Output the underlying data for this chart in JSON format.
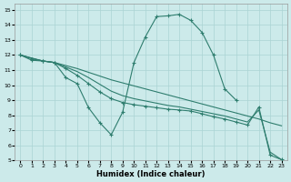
{
  "xlabel": "Humidex (Indice chaleur)",
  "background_color": "#cceaea",
  "grid_color": "#aad4d4",
  "line_color": "#2e7d6e",
  "xlim": [
    -0.5,
    23.5
  ],
  "ylim": [
    5,
    15.4
  ],
  "x_ticks": [
    0,
    1,
    2,
    3,
    4,
    5,
    6,
    7,
    8,
    9,
    10,
    11,
    12,
    13,
    14,
    15,
    16,
    17,
    18,
    19,
    20,
    21,
    22,
    23
  ],
  "y_ticks": [
    5,
    6,
    7,
    8,
    9,
    10,
    11,
    12,
    13,
    14,
    15
  ],
  "s1_x": [
    0,
    1,
    2,
    3,
    4,
    5,
    6,
    7,
    8,
    9,
    10,
    11,
    12,
    13,
    14,
    15,
    16,
    17,
    18,
    19
  ],
  "s1_y": [
    12.0,
    11.65,
    11.6,
    11.5,
    10.5,
    10.1,
    8.5,
    7.5,
    6.7,
    8.2,
    11.5,
    13.2,
    14.55,
    14.6,
    14.7,
    14.3,
    13.5,
    12.0,
    9.75,
    9.0
  ],
  "s2_x": [
    0,
    1,
    2,
    3,
    4,
    5,
    6,
    7,
    8,
    9,
    10,
    11,
    12,
    13,
    14,
    15,
    16,
    17,
    18,
    19,
    20,
    21,
    22,
    23
  ],
  "s2_y": [
    12.0,
    11.78,
    11.6,
    11.5,
    11.3,
    11.1,
    10.85,
    10.6,
    10.35,
    10.15,
    9.95,
    9.75,
    9.55,
    9.35,
    9.15,
    8.95,
    8.75,
    8.55,
    8.35,
    8.15,
    7.95,
    7.75,
    7.5,
    7.3
  ],
  "s3_x": [
    0,
    1,
    2,
    3,
    4,
    5,
    6,
    7,
    8,
    9,
    10,
    11,
    12,
    13,
    14,
    15,
    16,
    17,
    18,
    19,
    20,
    21,
    22,
    23
  ],
  "s3_y": [
    12.0,
    11.75,
    11.6,
    11.5,
    11.1,
    10.65,
    10.1,
    9.55,
    9.1,
    8.85,
    8.7,
    8.6,
    8.5,
    8.4,
    8.35,
    8.28,
    8.1,
    7.9,
    7.75,
    7.55,
    7.35,
    8.55,
    5.35,
    5.05
  ],
  "s4_x": [
    0,
    1,
    2,
    3,
    4,
    5,
    6,
    7,
    8,
    9,
    10,
    11,
    12,
    13,
    14,
    15,
    16,
    17,
    18,
    19,
    20,
    21,
    22,
    23
  ],
  "s4_y": [
    12.0,
    11.8,
    11.6,
    11.5,
    11.2,
    10.9,
    10.5,
    10.05,
    9.6,
    9.3,
    9.1,
    8.95,
    8.8,
    8.65,
    8.55,
    8.4,
    8.25,
    8.1,
    7.95,
    7.75,
    7.55,
    8.35,
    5.55,
    5.05
  ]
}
